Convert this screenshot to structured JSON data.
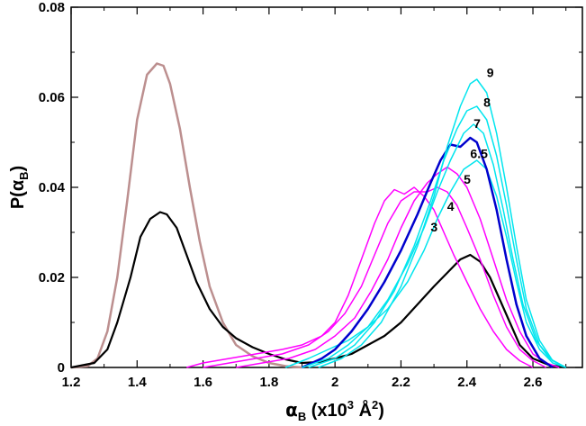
{
  "chart_data": {
    "type": "line",
    "xlim": [
      1.2,
      2.75
    ],
    "ylim": [
      0,
      0.08
    ],
    "xticks": [
      1.2,
      1.4,
      1.6,
      1.8,
      2.0,
      2.2,
      2.4,
      2.6
    ],
    "xtick_labels": [
      "1.2",
      "1.4",
      "1.6",
      "1.8",
      "2",
      "2.2",
      "2.4",
      "2.6"
    ],
    "yticks": [
      0,
      0.02,
      0.04,
      0.06,
      0.08
    ],
    "ytick_labels": [
      "0",
      "0.02",
      "0.04",
      "0.06",
      "0.08"
    ],
    "xlabel": {
      "main": "α",
      "sub": "B",
      "mid": " (x10",
      "sup1": "3",
      "unit": " Å",
      "sup2": "2",
      "close": ")"
    },
    "ylabel": {
      "main": "P(α",
      "sub": "B",
      "close": ")"
    },
    "colors": {
      "brown": "#bc8f8f",
      "black": "#000000",
      "magenta": "#ff00ff",
      "blue": "#0000cd",
      "cyan": "#00e5ee"
    },
    "series": [
      {
        "name": "brown-peak",
        "label": "",
        "color": "#bc8f8f",
        "width": 2.5,
        "points": [
          [
            1.2,
            0
          ],
          [
            1.25,
            0.0003
          ],
          [
            1.28,
            0.002
          ],
          [
            1.31,
            0.008
          ],
          [
            1.34,
            0.02
          ],
          [
            1.37,
            0.037
          ],
          [
            1.4,
            0.055
          ],
          [
            1.43,
            0.065
          ],
          [
            1.46,
            0.0675
          ],
          [
            1.48,
            0.067
          ],
          [
            1.5,
            0.063
          ],
          [
            1.53,
            0.053
          ],
          [
            1.56,
            0.04
          ],
          [
            1.59,
            0.028
          ],
          [
            1.62,
            0.018
          ],
          [
            1.66,
            0.01
          ],
          [
            1.7,
            0.005
          ],
          [
            1.75,
            0.0025
          ],
          [
            1.8,
            0.001
          ],
          [
            1.85,
            0.0003
          ],
          [
            1.9,
            0
          ]
        ]
      },
      {
        "name": "black-full",
        "label": "",
        "color": "#000000",
        "width": 2.2,
        "points": [
          [
            1.2,
            0
          ],
          [
            1.27,
            0.001
          ],
          [
            1.31,
            0.004
          ],
          [
            1.34,
            0.01
          ],
          [
            1.38,
            0.02
          ],
          [
            1.41,
            0.029
          ],
          [
            1.44,
            0.033
          ],
          [
            1.47,
            0.0345
          ],
          [
            1.49,
            0.034
          ],
          [
            1.52,
            0.031
          ],
          [
            1.55,
            0.025
          ],
          [
            1.58,
            0.019
          ],
          [
            1.62,
            0.013
          ],
          [
            1.66,
            0.009
          ],
          [
            1.7,
            0.0065
          ],
          [
            1.75,
            0.0045
          ],
          [
            1.8,
            0.003
          ],
          [
            1.85,
            0.0018
          ],
          [
            1.9,
            0.001
          ],
          [
            1.95,
            0.0012
          ],
          [
            2.0,
            0.002
          ],
          [
            2.05,
            0.003
          ],
          [
            2.1,
            0.005
          ],
          [
            2.15,
            0.007
          ],
          [
            2.2,
            0.01
          ],
          [
            2.25,
            0.014
          ],
          [
            2.3,
            0.018
          ],
          [
            2.34,
            0.021
          ],
          [
            2.38,
            0.024
          ],
          [
            2.41,
            0.025
          ],
          [
            2.44,
            0.0235
          ],
          [
            2.47,
            0.02
          ],
          [
            2.5,
            0.015
          ],
          [
            2.53,
            0.01
          ],
          [
            2.56,
            0.005
          ],
          [
            2.6,
            0.002
          ],
          [
            2.65,
            0.0005
          ],
          [
            2.7,
            0
          ]
        ]
      },
      {
        "name": "magenta-3",
        "label": "3",
        "color": "#ff00ff",
        "width": 1.5,
        "points": [
          [
            1.55,
            0
          ],
          [
            1.6,
            0.001
          ],
          [
            1.68,
            0.002
          ],
          [
            1.76,
            0.003
          ],
          [
            1.84,
            0.004
          ],
          [
            1.9,
            0.005
          ],
          [
            1.96,
            0.007
          ],
          [
            2.0,
            0.01
          ],
          [
            2.04,
            0.016
          ],
          [
            2.08,
            0.024
          ],
          [
            2.12,
            0.032
          ],
          [
            2.15,
            0.037
          ],
          [
            2.18,
            0.0395
          ],
          [
            2.21,
            0.0385
          ],
          [
            2.24,
            0.04
          ],
          [
            2.27,
            0.038
          ],
          [
            2.3,
            0.035
          ],
          [
            2.33,
            0.03
          ],
          [
            2.36,
            0.025
          ],
          [
            2.4,
            0.019
          ],
          [
            2.44,
            0.013
          ],
          [
            2.48,
            0.008
          ],
          [
            2.52,
            0.004
          ],
          [
            2.56,
            0.0015
          ],
          [
            2.6,
            0
          ]
        ]
      },
      {
        "name": "magenta-4",
        "label": "4",
        "color": "#ff00ff",
        "width": 1.5,
        "points": [
          [
            1.6,
            0
          ],
          [
            1.68,
            0.001
          ],
          [
            1.76,
            0.002
          ],
          [
            1.84,
            0.003
          ],
          [
            1.92,
            0.005
          ],
          [
            1.98,
            0.008
          ],
          [
            2.03,
            0.012
          ],
          [
            2.08,
            0.018
          ],
          [
            2.12,
            0.025
          ],
          [
            2.16,
            0.032
          ],
          [
            2.2,
            0.037
          ],
          [
            2.24,
            0.039
          ],
          [
            2.28,
            0.039
          ],
          [
            2.31,
            0.04
          ],
          [
            2.34,
            0.039
          ],
          [
            2.37,
            0.036
          ],
          [
            2.4,
            0.031
          ],
          [
            2.44,
            0.024
          ],
          [
            2.48,
            0.016
          ],
          [
            2.52,
            0.009
          ],
          [
            2.56,
            0.004
          ],
          [
            2.6,
            0.0015
          ],
          [
            2.64,
            0
          ]
        ]
      },
      {
        "name": "magenta-5",
        "label": "5",
        "color": "#ff00ff",
        "width": 1.5,
        "points": [
          [
            1.7,
            0
          ],
          [
            1.78,
            0.001
          ],
          [
            1.86,
            0.002
          ],
          [
            1.94,
            0.004
          ],
          [
            2.0,
            0.007
          ],
          [
            2.06,
            0.011
          ],
          [
            2.11,
            0.017
          ],
          [
            2.16,
            0.024
          ],
          [
            2.2,
            0.031
          ],
          [
            2.24,
            0.037
          ],
          [
            2.28,
            0.041
          ],
          [
            2.31,
            0.043
          ],
          [
            2.34,
            0.0445
          ],
          [
            2.37,
            0.043
          ],
          [
            2.4,
            0.04
          ],
          [
            2.44,
            0.033
          ],
          [
            2.48,
            0.024
          ],
          [
            2.52,
            0.015
          ],
          [
            2.56,
            0.008
          ],
          [
            2.6,
            0.003
          ],
          [
            2.64,
            0.001
          ],
          [
            2.68,
            0
          ]
        ]
      },
      {
        "name": "cyan-low",
        "label": "",
        "color": "#00e5ee",
        "width": 1.5,
        "points": [
          [
            1.85,
            0
          ],
          [
            1.92,
            0.002
          ],
          [
            1.98,
            0.004
          ],
          [
            2.04,
            0.006
          ],
          [
            2.1,
            0.009
          ],
          [
            2.16,
            0.013
          ],
          [
            2.22,
            0.019
          ],
          [
            2.27,
            0.026
          ],
          [
            2.31,
            0.033
          ],
          [
            2.35,
            0.039
          ],
          [
            2.39,
            0.044
          ],
          [
            2.43,
            0.046
          ],
          [
            2.46,
            0.044
          ],
          [
            2.49,
            0.038
          ],
          [
            2.52,
            0.029
          ],
          [
            2.55,
            0.019
          ],
          [
            2.58,
            0.01
          ],
          [
            2.62,
            0.004
          ],
          [
            2.66,
            0.001
          ],
          [
            2.7,
            0
          ]
        ]
      },
      {
        "name": "blue-6.5",
        "label": "6.5",
        "color": "#0000cd",
        "width": 2.5,
        "points": [
          [
            1.9,
            0
          ],
          [
            1.96,
            0.002
          ],
          [
            2.0,
            0.004
          ],
          [
            2.05,
            0.008
          ],
          [
            2.1,
            0.013
          ],
          [
            2.15,
            0.019
          ],
          [
            2.2,
            0.026
          ],
          [
            2.25,
            0.034
          ],
          [
            2.29,
            0.041
          ],
          [
            2.32,
            0.046
          ],
          [
            2.35,
            0.0495
          ],
          [
            2.38,
            0.049
          ],
          [
            2.41,
            0.051
          ],
          [
            2.43,
            0.05
          ],
          [
            2.46,
            0.044
          ],
          [
            2.49,
            0.035
          ],
          [
            2.52,
            0.024
          ],
          [
            2.55,
            0.014
          ],
          [
            2.58,
            0.007
          ],
          [
            2.62,
            0.002
          ],
          [
            2.66,
            0
          ]
        ]
      },
      {
        "name": "cyan-7",
        "label": "7",
        "color": "#00e5ee",
        "width": 1.5,
        "points": [
          [
            1.9,
            0
          ],
          [
            1.98,
            0.002
          ],
          [
            2.04,
            0.005
          ],
          [
            2.1,
            0.009
          ],
          [
            2.16,
            0.015
          ],
          [
            2.22,
            0.023
          ],
          [
            2.27,
            0.031
          ],
          [
            2.31,
            0.039
          ],
          [
            2.35,
            0.046
          ],
          [
            2.39,
            0.052
          ],
          [
            2.42,
            0.054
          ],
          [
            2.45,
            0.052
          ],
          [
            2.48,
            0.045
          ],
          [
            2.51,
            0.035
          ],
          [
            2.54,
            0.024
          ],
          [
            2.57,
            0.014
          ],
          [
            2.61,
            0.006
          ],
          [
            2.65,
            0.002
          ],
          [
            2.7,
            0
          ]
        ]
      },
      {
        "name": "cyan-8",
        "label": "8",
        "color": "#00e5ee",
        "width": 1.5,
        "points": [
          [
            1.92,
            0
          ],
          [
            2.0,
            0.002
          ],
          [
            2.06,
            0.005
          ],
          [
            2.12,
            0.01
          ],
          [
            2.18,
            0.017
          ],
          [
            2.24,
            0.027
          ],
          [
            2.29,
            0.037
          ],
          [
            2.33,
            0.046
          ],
          [
            2.37,
            0.053
          ],
          [
            2.4,
            0.057
          ],
          [
            2.43,
            0.058
          ],
          [
            2.46,
            0.055
          ],
          [
            2.49,
            0.047
          ],
          [
            2.52,
            0.036
          ],
          [
            2.55,
            0.024
          ],
          [
            2.58,
            0.013
          ],
          [
            2.62,
            0.005
          ],
          [
            2.66,
            0.0015
          ],
          [
            2.7,
            0
          ]
        ]
      },
      {
        "name": "cyan-9",
        "label": "9",
        "color": "#00e5ee",
        "width": 1.5,
        "points": [
          [
            1.95,
            0
          ],
          [
            2.02,
            0.002
          ],
          [
            2.08,
            0.005
          ],
          [
            2.14,
            0.01
          ],
          [
            2.2,
            0.018
          ],
          [
            2.25,
            0.027
          ],
          [
            2.3,
            0.038
          ],
          [
            2.34,
            0.049
          ],
          [
            2.38,
            0.058
          ],
          [
            2.41,
            0.063
          ],
          [
            2.43,
            0.064
          ],
          [
            2.46,
            0.061
          ],
          [
            2.49,
            0.052
          ],
          [
            2.52,
            0.04
          ],
          [
            2.55,
            0.027
          ],
          [
            2.58,
            0.015
          ],
          [
            2.62,
            0.006
          ],
          [
            2.66,
            0.0015
          ],
          [
            2.7,
            0
          ]
        ]
      }
    ],
    "annotations": [
      {
        "text": "9",
        "x": 2.46,
        "y": 0.0645
      },
      {
        "text": "8",
        "x": 2.45,
        "y": 0.0579
      },
      {
        "text": "7",
        "x": 2.42,
        "y": 0.0532
      },
      {
        "text": "6.5",
        "x": 2.41,
        "y": 0.0465
      },
      {
        "text": "5",
        "x": 2.39,
        "y": 0.0408
      },
      {
        "text": "4",
        "x": 2.34,
        "y": 0.0348
      },
      {
        "text": "3",
        "x": 2.29,
        "y": 0.0302
      }
    ]
  }
}
